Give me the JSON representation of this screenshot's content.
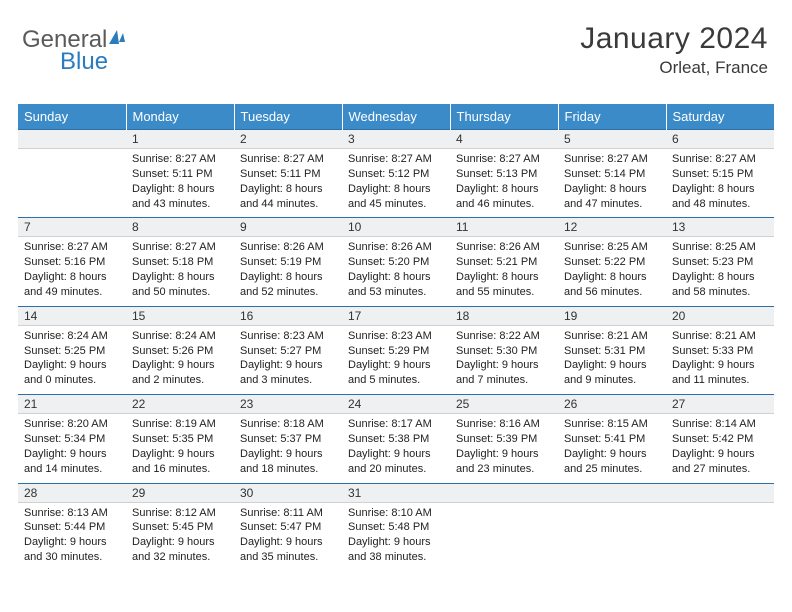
{
  "logo": {
    "text1": "General",
    "text2": "Blue"
  },
  "title": "January 2024",
  "location": "Orleat, France",
  "weekdays": [
    "Sunday",
    "Monday",
    "Tuesday",
    "Wednesday",
    "Thursday",
    "Friday",
    "Saturday"
  ],
  "style": {
    "header_bg": "#3b8bc9",
    "header_text": "#ffffff",
    "daynum_bg": "#eef0f2",
    "rule_color": "#2e6fa8",
    "font_size_body": 11,
    "font_size_title": 30
  },
  "start_offset": 1,
  "days": [
    {
      "n": 1,
      "sunrise": "8:27 AM",
      "sunset": "5:11 PM",
      "daylight": "8 hours and 43 minutes."
    },
    {
      "n": 2,
      "sunrise": "8:27 AM",
      "sunset": "5:11 PM",
      "daylight": "8 hours and 44 minutes."
    },
    {
      "n": 3,
      "sunrise": "8:27 AM",
      "sunset": "5:12 PM",
      "daylight": "8 hours and 45 minutes."
    },
    {
      "n": 4,
      "sunrise": "8:27 AM",
      "sunset": "5:13 PM",
      "daylight": "8 hours and 46 minutes."
    },
    {
      "n": 5,
      "sunrise": "8:27 AM",
      "sunset": "5:14 PM",
      "daylight": "8 hours and 47 minutes."
    },
    {
      "n": 6,
      "sunrise": "8:27 AM",
      "sunset": "5:15 PM",
      "daylight": "8 hours and 48 minutes."
    },
    {
      "n": 7,
      "sunrise": "8:27 AM",
      "sunset": "5:16 PM",
      "daylight": "8 hours and 49 minutes."
    },
    {
      "n": 8,
      "sunrise": "8:27 AM",
      "sunset": "5:18 PM",
      "daylight": "8 hours and 50 minutes."
    },
    {
      "n": 9,
      "sunrise": "8:26 AM",
      "sunset": "5:19 PM",
      "daylight": "8 hours and 52 minutes."
    },
    {
      "n": 10,
      "sunrise": "8:26 AM",
      "sunset": "5:20 PM",
      "daylight": "8 hours and 53 minutes."
    },
    {
      "n": 11,
      "sunrise": "8:26 AM",
      "sunset": "5:21 PM",
      "daylight": "8 hours and 55 minutes."
    },
    {
      "n": 12,
      "sunrise": "8:25 AM",
      "sunset": "5:22 PM",
      "daylight": "8 hours and 56 minutes."
    },
    {
      "n": 13,
      "sunrise": "8:25 AM",
      "sunset": "5:23 PM",
      "daylight": "8 hours and 58 minutes."
    },
    {
      "n": 14,
      "sunrise": "8:24 AM",
      "sunset": "5:25 PM",
      "daylight": "9 hours and 0 minutes."
    },
    {
      "n": 15,
      "sunrise": "8:24 AM",
      "sunset": "5:26 PM",
      "daylight": "9 hours and 2 minutes."
    },
    {
      "n": 16,
      "sunrise": "8:23 AM",
      "sunset": "5:27 PM",
      "daylight": "9 hours and 3 minutes."
    },
    {
      "n": 17,
      "sunrise": "8:23 AM",
      "sunset": "5:29 PM",
      "daylight": "9 hours and 5 minutes."
    },
    {
      "n": 18,
      "sunrise": "8:22 AM",
      "sunset": "5:30 PM",
      "daylight": "9 hours and 7 minutes."
    },
    {
      "n": 19,
      "sunrise": "8:21 AM",
      "sunset": "5:31 PM",
      "daylight": "9 hours and 9 minutes."
    },
    {
      "n": 20,
      "sunrise": "8:21 AM",
      "sunset": "5:33 PM",
      "daylight": "9 hours and 11 minutes."
    },
    {
      "n": 21,
      "sunrise": "8:20 AM",
      "sunset": "5:34 PM",
      "daylight": "9 hours and 14 minutes."
    },
    {
      "n": 22,
      "sunrise": "8:19 AM",
      "sunset": "5:35 PM",
      "daylight": "9 hours and 16 minutes."
    },
    {
      "n": 23,
      "sunrise": "8:18 AM",
      "sunset": "5:37 PM",
      "daylight": "9 hours and 18 minutes."
    },
    {
      "n": 24,
      "sunrise": "8:17 AM",
      "sunset": "5:38 PM",
      "daylight": "9 hours and 20 minutes."
    },
    {
      "n": 25,
      "sunrise": "8:16 AM",
      "sunset": "5:39 PM",
      "daylight": "9 hours and 23 minutes."
    },
    {
      "n": 26,
      "sunrise": "8:15 AM",
      "sunset": "5:41 PM",
      "daylight": "9 hours and 25 minutes."
    },
    {
      "n": 27,
      "sunrise": "8:14 AM",
      "sunset": "5:42 PM",
      "daylight": "9 hours and 27 minutes."
    },
    {
      "n": 28,
      "sunrise": "8:13 AM",
      "sunset": "5:44 PM",
      "daylight": "9 hours and 30 minutes."
    },
    {
      "n": 29,
      "sunrise": "8:12 AM",
      "sunset": "5:45 PM",
      "daylight": "9 hours and 32 minutes."
    },
    {
      "n": 30,
      "sunrise": "8:11 AM",
      "sunset": "5:47 PM",
      "daylight": "9 hours and 35 minutes."
    },
    {
      "n": 31,
      "sunrise": "8:10 AM",
      "sunset": "5:48 PM",
      "daylight": "9 hours and 38 minutes."
    }
  ],
  "labels": {
    "sunrise": "Sunrise:",
    "sunset": "Sunset:",
    "daylight": "Daylight:"
  }
}
